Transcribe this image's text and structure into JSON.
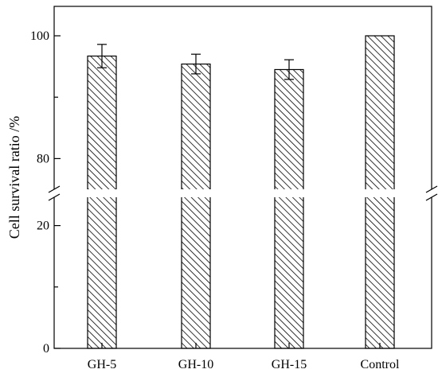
{
  "chart_data": {
    "type": "bar",
    "title": "",
    "xlabel": "",
    "ylabel": "Cell survival ratio /%",
    "categories": [
      "GH-5",
      "GH-10",
      "GH-15",
      "Control"
    ],
    "values": [
      96.7,
      95.4,
      94.5,
      100
    ],
    "errors": [
      1.9,
      1.6,
      1.6,
      0
    ],
    "y_axis_break": {
      "lower_range": [
        0,
        25
      ],
      "upper_range": [
        75,
        101
      ]
    },
    "y_ticks_lower": [
      "0",
      "20"
    ],
    "y_ticks_upper": [
      "80",
      "100"
    ],
    "bar_fill": "diagonal-hatch",
    "bar_color": "#000000",
    "grid": false,
    "legend": "none"
  }
}
